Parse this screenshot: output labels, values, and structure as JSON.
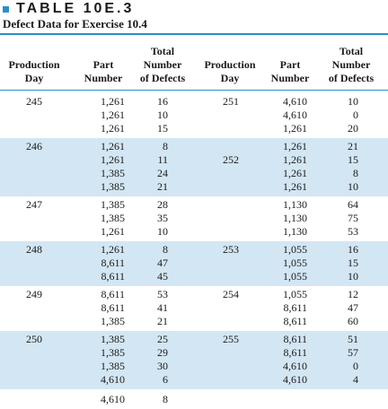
{
  "table_label": "TABLE 10E.3",
  "subtitle": "Defect Data for Exercise 10.4",
  "headers": {
    "production_day": "Production\nDay",
    "part_number": "Part\nNumber",
    "total_defects": "Total\nNumber\nof Defects"
  },
  "accent_color": "#2b8fc9",
  "shade_color": "#d3e6f3",
  "blocks": [
    {
      "shaded": false,
      "rows": [
        {
          "ld": "245",
          "lp": "1,261",
          "lx": "16",
          "rd": "251",
          "rp": "4,610",
          "rx": "10"
        },
        {
          "ld": "",
          "lp": "1,261",
          "lx": "10",
          "rd": "",
          "rp": "4,610",
          "rx": "0"
        },
        {
          "ld": "",
          "lp": "1,261",
          "lx": "15",
          "rd": "",
          "rp": "1,261",
          "rx": "20"
        }
      ]
    },
    {
      "shaded": true,
      "rows": [
        {
          "ld": "246",
          "lp": "1,261",
          "lx": "8",
          "rd": "",
          "rp": "1,261",
          "rx": "21"
        },
        {
          "ld": "",
          "lp": "1,261",
          "lx": "11",
          "rd": "252",
          "rp": "1,261",
          "rx": "15"
        },
        {
          "ld": "",
          "lp": "1,385",
          "lx": "24",
          "rd": "",
          "rp": "1,261",
          "rx": "8"
        },
        {
          "ld": "",
          "lp": "1,385",
          "lx": "21",
          "rd": "",
          "rp": "1,261",
          "rx": "10"
        }
      ]
    },
    {
      "shaded": false,
      "rows": [
        {
          "ld": "247",
          "lp": "1,385",
          "lx": "28",
          "rd": "",
          "rp": "1,130",
          "rx": "64"
        },
        {
          "ld": "",
          "lp": "1,385",
          "lx": "35",
          "rd": "",
          "rp": "1,130",
          "rx": "75"
        },
        {
          "ld": "",
          "lp": "1,261",
          "lx": "10",
          "rd": "",
          "rp": "1,130",
          "rx": "53"
        }
      ]
    },
    {
      "shaded": true,
      "rows": [
        {
          "ld": "248",
          "lp": "1,261",
          "lx": "8",
          "rd": "253",
          "rp": "1,055",
          "rx": "16"
        },
        {
          "ld": "",
          "lp": "8,611",
          "lx": "47",
          "rd": "",
          "rp": "1,055",
          "rx": "15"
        },
        {
          "ld": "",
          "lp": "8,611",
          "lx": "45",
          "rd": "",
          "rp": "1,055",
          "rx": "10"
        }
      ]
    },
    {
      "shaded": false,
      "rows": [
        {
          "ld": "249",
          "lp": "8,611",
          "lx": "53",
          "rd": "254",
          "rp": "1,055",
          "rx": "12"
        },
        {
          "ld": "",
          "lp": "8,611",
          "lx": "41",
          "rd": "",
          "rp": "8,611",
          "rx": "47"
        },
        {
          "ld": "",
          "lp": "1,385",
          "lx": "21",
          "rd": "",
          "rp": "8,611",
          "rx": "60"
        }
      ]
    },
    {
      "shaded": true,
      "rows": [
        {
          "ld": "250",
          "lp": "1,385",
          "lx": "25",
          "rd": "255",
          "rp": "8,611",
          "rx": "51"
        },
        {
          "ld": "",
          "lp": "1,385",
          "lx": "29",
          "rd": "",
          "rp": "8,611",
          "rx": "57"
        },
        {
          "ld": "",
          "lp": "1,385",
          "lx": "30",
          "rd": "",
          "rp": "4,610",
          "rx": "0"
        },
        {
          "ld": "",
          "lp": "4,610",
          "lx": "6",
          "rd": "",
          "rp": "4,610",
          "rx": "4"
        }
      ]
    }
  ],
  "last_row": {
    "lp": "4,610",
    "lx": "8"
  }
}
